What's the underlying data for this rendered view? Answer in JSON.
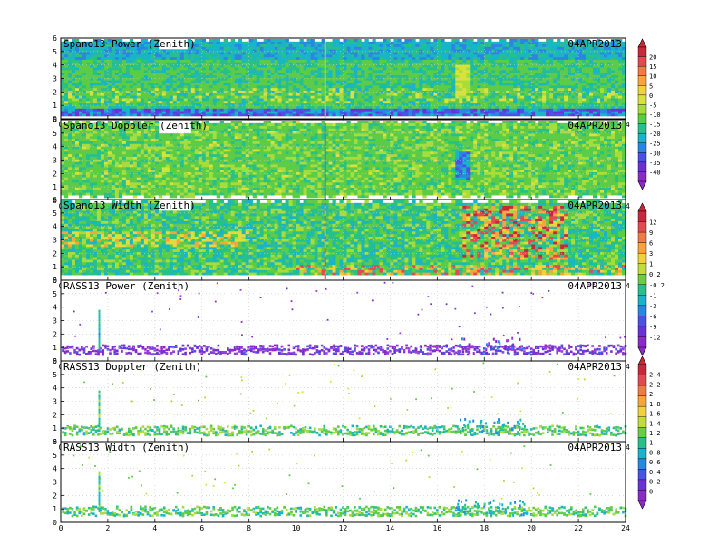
{
  "chart_data": [
    {
      "type": "heatmap",
      "title": "Spano13 Power (Zenith)",
      "date": "04APR2013",
      "x_ticks": [
        "0",
        "2",
        "4",
        "6",
        "8",
        "10",
        "12",
        "14",
        "16",
        "18",
        "20",
        "22",
        "24"
      ],
      "y_ticks": [
        "0",
        "1",
        "2",
        "3",
        "4",
        "5",
        "6"
      ],
      "xlim": [
        0,
        24
      ],
      "ylim": [
        0,
        6
      ],
      "colorbar_group": "power_width",
      "pattern": "power"
    },
    {
      "type": "heatmap",
      "title": "Spano13 Doppler (Zenith)",
      "date": "04APR2013",
      "x_ticks": [
        "0",
        "2",
        "4",
        "6",
        "8",
        "10",
        "12",
        "14",
        "16",
        "18",
        "20",
        "22",
        "24"
      ],
      "y_ticks": [
        "0",
        "1",
        "2",
        "3",
        "4",
        "5",
        "6"
      ],
      "xlim": [
        0,
        24
      ],
      "ylim": [
        0,
        6
      ],
      "colorbar_group": "power_width",
      "pattern": "doppler"
    },
    {
      "type": "heatmap",
      "title": "Spano13 Width (Zenith)",
      "date": "04APR2013",
      "x_ticks": [
        "0",
        "2",
        "4",
        "6",
        "8",
        "10",
        "12",
        "14",
        "16",
        "18",
        "20",
        "22",
        "24"
      ],
      "y_ticks": [
        "0",
        "1",
        "2",
        "3",
        "4",
        "5",
        "6"
      ],
      "xlim": [
        0,
        24
      ],
      "ylim": [
        0,
        6
      ],
      "colorbar_group": "power_width",
      "pattern": "width"
    },
    {
      "type": "heatmap",
      "title": "RASS13 Power (Zenith)",
      "date": "04APR2013",
      "x_ticks": [
        "0",
        "2",
        "4",
        "6",
        "8",
        "10",
        "12",
        "14",
        "16",
        "18",
        "20",
        "22",
        "24"
      ],
      "y_ticks": [
        "0",
        "1",
        "2",
        "3",
        "4",
        "5",
        "6"
      ],
      "xlim": [
        0,
        24
      ],
      "ylim": [
        0,
        6
      ],
      "colorbar_group": "rass_power",
      "pattern": "rass_power"
    },
    {
      "type": "heatmap",
      "title": "RASS13 Doppler (Zenith)",
      "date": "04APR2013",
      "x_ticks": [
        "0",
        "2",
        "4",
        "6",
        "8",
        "10",
        "12",
        "14",
        "16",
        "18",
        "20",
        "22",
        "24"
      ],
      "y_ticks": [
        "0",
        "1",
        "2",
        "3",
        "4",
        "5",
        "6"
      ],
      "xlim": [
        0,
        24
      ],
      "ylim": [
        0,
        6
      ],
      "colorbar_group": "rass_dw",
      "pattern": "rass"
    },
    {
      "type": "heatmap",
      "title": "RASS13 Width (Zenith)",
      "date": "04APR2013",
      "x_ticks": [
        "0",
        "2",
        "4",
        "6",
        "8",
        "10",
        "12",
        "14",
        "16",
        "18",
        "20",
        "22",
        "24"
      ],
      "y_ticks": [
        "0",
        "1",
        "2",
        "3",
        "4",
        "5",
        "6"
      ],
      "xlim": [
        0,
        24
      ],
      "ylim": [
        0,
        6
      ],
      "colorbar_group": "rass_dw",
      "pattern": "rass"
    }
  ],
  "colorbars": [
    {
      "id": "power_width",
      "labels": [
        "20",
        "15",
        "10",
        "5",
        "0",
        "-5",
        "-10",
        "-15",
        "-20",
        "-25",
        "-30",
        "-35",
        "-40"
      ],
      "colors": [
        "#c8283c",
        "#e04a50",
        "#f07a48",
        "#f6a43c",
        "#f2d23a",
        "#d8e23a",
        "#a6dc3c",
        "#5ccc46",
        "#28c08a",
        "#18b4c8",
        "#2a86e0",
        "#4a52e6",
        "#6a32d6",
        "#8a2ac8"
      ]
    },
    {
      "id": "rass_power",
      "labels": [
        "12",
        "9",
        "6",
        "3",
        "1",
        "0.2",
        "-0.2",
        "-1",
        "-3",
        "-6",
        "-9",
        "-12"
      ],
      "colors": [
        "#c8283c",
        "#e04a50",
        "#f07a48",
        "#f6a43c",
        "#f2d23a",
        "#c2dc3a",
        "#6ccc44",
        "#28c08a",
        "#18b4c8",
        "#2a86e0",
        "#4a52e6",
        "#6a32d6",
        "#8a2ac8"
      ]
    },
    {
      "id": "rass_dw",
      "labels": [
        "2.4",
        "2.2",
        "2",
        "1.8",
        "1.6",
        "1.4",
        "1.2",
        "1",
        "0.8",
        "0.6",
        "0.4",
        "0.2",
        "0"
      ],
      "colors": [
        "#c8283c",
        "#e04a50",
        "#f07a48",
        "#f6a43c",
        "#f2d23a",
        "#c2dc3a",
        "#6ccc44",
        "#28c08a",
        "#18b4c8",
        "#2a86e0",
        "#4a52e6",
        "#6a32d6",
        "#8a2ac8"
      ]
    }
  ]
}
